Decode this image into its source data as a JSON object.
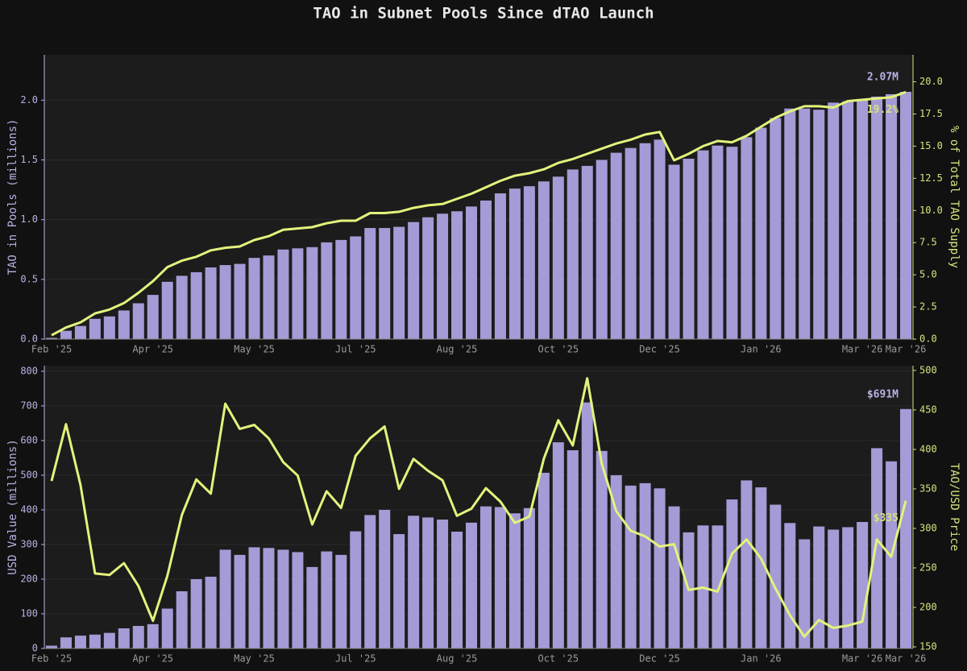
{
  "title": "TAO in Subnet Pools Since dTAO Launch",
  "chart_data": [
    {
      "type": "bar",
      "ylabel": "TAO in Pools (millions)",
      "y2label": "% of Total TAO Supply",
      "categories": [
        "Feb '25",
        null,
        null,
        null,
        null,
        null,
        null,
        "Apr '25",
        null,
        null,
        null,
        null,
        null,
        null,
        "May '25",
        null,
        null,
        null,
        null,
        null,
        null,
        "Jul '25",
        null,
        null,
        null,
        null,
        null,
        null,
        "Aug '25",
        null,
        null,
        null,
        null,
        null,
        null,
        "Oct '25",
        null,
        null,
        null,
        null,
        null,
        null,
        "Dec '25",
        null,
        null,
        null,
        null,
        null,
        null,
        "Jan '26",
        null,
        null,
        null,
        null,
        null,
        null,
        "Mar '26",
        null,
        null,
        "Mar '26"
      ],
      "ylim": [
        0,
        2.38
      ],
      "yticks": [
        {
          "value": 0,
          "label": "0.0"
        },
        0.5,
        {
          "value": 1,
          "label": "1.0"
        },
        1.5,
        {
          "value": 2,
          "label": "2.0"
        }
      ],
      "y2lim": [
        0,
        22.1
      ],
      "y2ticks": [
        {
          "value": 0,
          "label": "0.0"
        },
        2.5,
        {
          "value": 5,
          "label": "5.0"
        },
        7.5,
        {
          "value": 10,
          "label": "10.0"
        },
        12.5,
        {
          "value": 15,
          "label": "15.0"
        },
        17.5,
        {
          "value": 20,
          "label": "20.0"
        }
      ],
      "series": [
        {
          "color": "#a59bd6",
          "values": [
            0.01,
            0.07,
            0.11,
            0.17,
            0.19,
            0.24,
            0.3,
            0.37,
            0.48,
            0.53,
            0.56,
            0.6,
            0.62,
            0.63,
            0.68,
            0.7,
            0.75,
            0.76,
            0.77,
            0.81,
            0.83,
            0.86,
            0.93,
            0.93,
            0.94,
            0.98,
            1.02,
            1.05,
            1.07,
            1.11,
            1.16,
            1.22,
            1.26,
            1.28,
            1.32,
            1.36,
            1.42,
            1.45,
            1.5,
            1.56,
            1.6,
            1.64,
            1.67,
            1.46,
            1.51,
            1.58,
            1.62,
            1.61,
            1.69,
            1.77,
            1.85,
            1.93,
            1.93,
            1.92,
            1.98,
            1.99,
            2.01,
            2.03,
            2.05,
            2.07
          ]
        },
        {
          "type": "line",
          "axis": "y2",
          "color": "#e4f27c",
          "values": [
            0.3,
            0.9,
            1.3,
            2.0,
            2.3,
            2.8,
            3.6,
            4.5,
            5.6,
            6.1,
            6.4,
            6.9,
            7.1,
            7.2,
            7.7,
            8.0,
            8.5,
            8.6,
            8.7,
            9.0,
            9.2,
            9.2,
            9.8,
            9.8,
            9.9,
            10.2,
            10.4,
            10.5,
            10.9,
            11.3,
            11.8,
            12.3,
            12.7,
            12.9,
            13.2,
            13.7,
            14.0,
            14.4,
            14.8,
            15.2,
            15.5,
            15.9,
            16.1,
            13.9,
            14.4,
            15.0,
            15.4,
            15.3,
            15.8,
            16.5,
            17.2,
            17.7,
            18.1,
            18.1,
            18.0,
            18.5,
            18.6,
            18.7,
            18.8,
            19.2
          ]
        }
      ],
      "annotations": [
        "2.07M",
        "19.2%"
      ]
    },
    {
      "type": "bar",
      "ylabel": "USD Value (millions)",
      "y2label": "TAO/USD Price",
      "categories": [
        "Feb '25",
        null,
        null,
        null,
        null,
        null,
        null,
        "Apr '25",
        null,
        null,
        null,
        null,
        null,
        null,
        "May '25",
        null,
        null,
        null,
        null,
        null,
        null,
        "Jul '25",
        null,
        null,
        null,
        null,
        null,
        null,
        "Aug '25",
        null,
        null,
        null,
        null,
        null,
        null,
        "Oct '25",
        null,
        null,
        null,
        null,
        null,
        null,
        "Dec '25",
        null,
        null,
        null,
        null,
        null,
        null,
        "Jan '26",
        null,
        null,
        null,
        null,
        null,
        null,
        "Mar '26",
        null,
        null,
        "Mar '26"
      ],
      "ylim": [
        0,
        816
      ],
      "yticks": [
        0,
        100,
        200,
        300,
        400,
        500,
        600,
        700,
        800
      ],
      "y2lim": [
        148,
        506
      ],
      "y2ticks": [
        150,
        200,
        250,
        300,
        350,
        400,
        450,
        500
      ],
      "series": [
        {
          "color": "#a59bd6",
          "values": [
            8,
            32,
            37,
            40,
            45,
            58,
            65,
            70,
            115,
            165,
            200,
            207,
            285,
            270,
            292,
            290,
            285,
            278,
            235,
            280,
            270,
            338,
            385,
            400,
            330,
            383,
            378,
            372,
            337,
            363,
            410,
            408,
            390,
            405,
            507,
            595,
            572,
            710,
            570,
            500,
            470,
            477,
            462,
            410,
            335,
            355,
            355,
            430,
            485,
            465,
            415,
            362,
            315,
            352,
            343,
            350,
            365,
            578,
            540,
            691
          ]
        },
        {
          "type": "line",
          "axis": "y2",
          "color": "#e4f27c",
          "values": [
            360,
            432,
            355,
            243,
            241,
            256,
            227,
            183,
            240,
            317,
            362,
            344,
            458,
            426,
            431,
            414,
            384,
            367,
            305,
            347,
            326,
            392,
            414,
            429,
            350,
            388,
            373,
            361,
            316,
            325,
            351,
            334,
            307,
            315,
            388,
            437,
            405,
            490,
            382,
            322,
            297,
            290,
            277,
            280,
            222,
            225,
            220,
            268,
            286,
            262,
            224,
            190,
            163,
            184,
            174,
            177,
            182,
            286,
            264,
            335
          ]
        }
      ],
      "annotations": [
        "$691M",
        "$335"
      ]
    }
  ]
}
